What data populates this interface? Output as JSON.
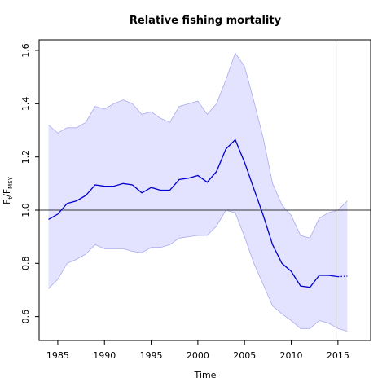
{
  "chart_data": {
    "type": "line",
    "title": "Relative fishing mortality",
    "xlabel": "Time",
    "ylabel": {
      "main": "F",
      "sub1": "t",
      "sep": "/F",
      "sub2": "MSY"
    },
    "xlim": [
      1983,
      2018.5
    ],
    "ylim": [
      0.51,
      1.64
    ],
    "x_ticks": [
      1985,
      1990,
      1995,
      2000,
      2005,
      2010,
      2015
    ],
    "y_ticks": [
      0.6,
      0.8,
      1.0,
      1.2,
      1.4,
      1.6
    ],
    "y_tick_labels": [
      "0.6",
      "0.8",
      "1.0",
      "1.2",
      "1.4",
      "1.6"
    ],
    "reference_line_y": 1.0,
    "vertical_line_x": 2014.8,
    "colors": {
      "line": "#0000cc",
      "band_fill": "#e3e3ff",
      "band_edge": "#aaaaee",
      "reference": "#333333",
      "vertical": "#cccccc"
    },
    "series": [
      {
        "name": "",
        "role": "estimate",
        "x": [
          1984,
          1985,
          1986,
          1987,
          1988,
          1989,
          1990,
          1991,
          1992,
          1993,
          1994,
          1995,
          1996,
          1997,
          1998,
          1999,
          2000,
          2001,
          2002,
          2003,
          2004,
          2005,
          2006,
          2007,
          2008,
          2009,
          2010,
          2011,
          2012,
          2013,
          2014,
          2015
        ],
        "values": [
          0.965,
          0.985,
          1.025,
          1.035,
          1.055,
          1.095,
          1.09,
          1.09,
          1.1,
          1.095,
          1.065,
          1.085,
          1.075,
          1.075,
          1.115,
          1.12,
          1.13,
          1.105,
          1.145,
          1.23,
          1.265,
          1.18,
          1.08,
          0.98,
          0.87,
          0.8,
          0.77,
          0.715,
          0.71,
          0.755,
          0.755,
          0.75
        ]
      },
      {
        "name": "",
        "role": "projection",
        "x": [
          2015,
          2016
        ],
        "values": [
          0.75,
          0.752
        ]
      }
    ],
    "band": {
      "x": [
        1984,
        1985,
        1986,
        1987,
        1988,
        1989,
        1990,
        1991,
        1992,
        1993,
        1994,
        1995,
        1996,
        1997,
        1998,
        1999,
        2000,
        2001,
        2002,
        2003,
        2004,
        2005,
        2006,
        2007,
        2008,
        2009,
        2010,
        2011,
        2012,
        2013,
        2014,
        2015,
        2016
      ],
      "upper": [
        1.32,
        1.29,
        1.31,
        1.31,
        1.33,
        1.39,
        1.38,
        1.4,
        1.415,
        1.4,
        1.36,
        1.37,
        1.345,
        1.33,
        1.39,
        1.4,
        1.41,
        1.36,
        1.4,
        1.49,
        1.59,
        1.54,
        1.41,
        1.27,
        1.1,
        1.02,
        0.98,
        0.905,
        0.895,
        0.97,
        0.99,
        1.0,
        1.035
      ],
      "lower": [
        0.705,
        0.74,
        0.8,
        0.815,
        0.835,
        0.87,
        0.855,
        0.855,
        0.855,
        0.845,
        0.84,
        0.86,
        0.86,
        0.87,
        0.895,
        0.9,
        0.905,
        0.905,
        0.94,
        1.0,
        0.99,
        0.9,
        0.8,
        0.72,
        0.64,
        0.61,
        0.585,
        0.555,
        0.555,
        0.585,
        0.575,
        0.555,
        0.545
      ]
    }
  }
}
